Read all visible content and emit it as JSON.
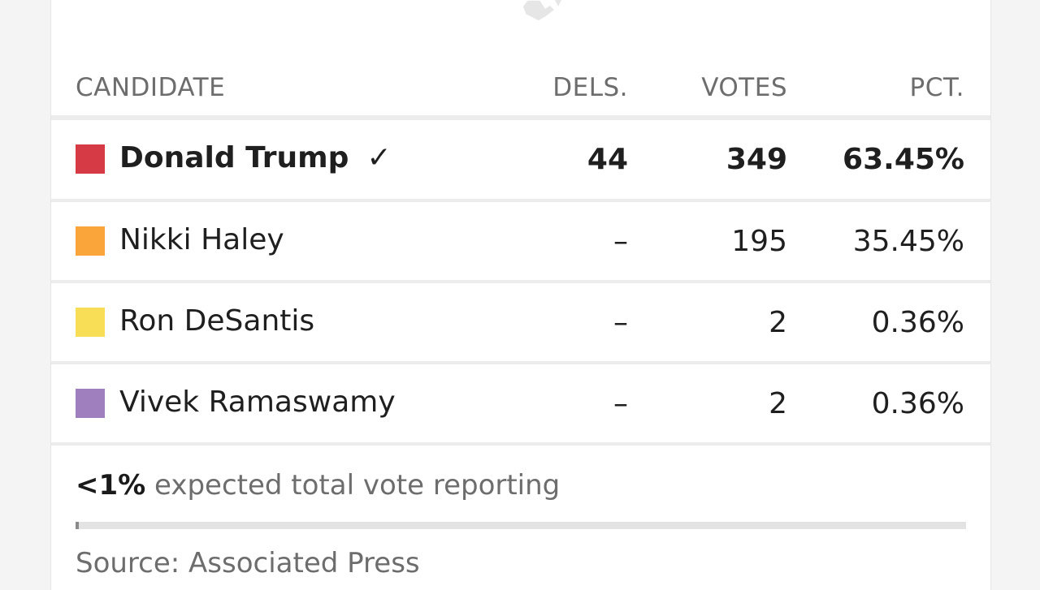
{
  "table": {
    "headers": {
      "candidate": "CANDIDATE",
      "delegates": "DELS.",
      "votes": "VOTES",
      "percent": "PCT."
    },
    "rows": [
      {
        "name": "Donald Trump",
        "winner_mark": "✓",
        "delegates": "44",
        "votes": "349",
        "percent": "63.45%",
        "color": "#d63a45"
      },
      {
        "name": "Nikki Haley",
        "winner_mark": "",
        "delegates": "–",
        "votes": "195",
        "percent": "35.45%",
        "color": "#f9a53a"
      },
      {
        "name": "Ron DeSantis",
        "winner_mark": "",
        "delegates": "–",
        "votes": "2",
        "percent": "0.36%",
        "color": "#f8dd57"
      },
      {
        "name": "Vivek Ramaswamy",
        "winner_mark": "",
        "delegates": "–",
        "votes": "2",
        "percent": "0.36%",
        "color": "#a07fbf"
      }
    ]
  },
  "reporting": {
    "value": "<1%",
    "text": " expected total vote reporting",
    "fraction": 0.004
  },
  "source": "Source: Associated Press",
  "icons": {
    "map": "state-map-icon"
  }
}
